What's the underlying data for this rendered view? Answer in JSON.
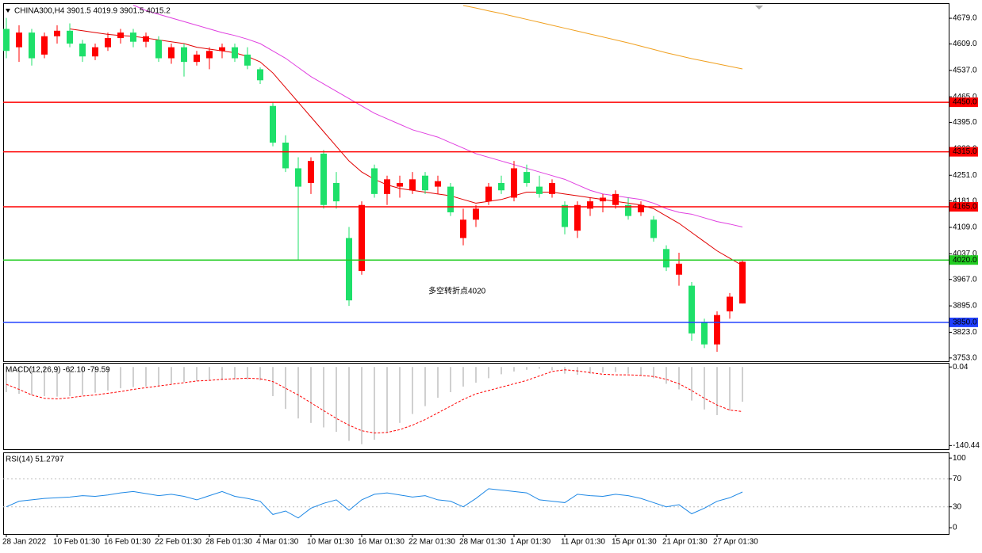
{
  "chart_data": [
    {
      "type": "candlestick",
      "title": "CHINA300,H4  3901.5 4019.9 3901.5 4015.2",
      "categories": [
        "28 Jan 2022",
        null,
        null,
        null,
        "10 Feb 01:30",
        null,
        null,
        null,
        "16 Feb 01:30",
        null,
        null,
        null,
        "22 Feb 01:30",
        null,
        null,
        null,
        "28 Feb 01:30",
        null,
        null,
        null,
        "4 Mar 01:30",
        null,
        null,
        null,
        "10 Mar 01:30",
        null,
        null,
        null,
        "16 Mar 01:30",
        null,
        null,
        null,
        "22 Mar 01:30",
        null,
        null,
        null,
        "28 Mar 01:30",
        null,
        null,
        null,
        "1 Apr 01:30",
        null,
        null,
        null,
        "11 Apr 01:30",
        null,
        null,
        null,
        "15 Apr 01:30",
        null,
        null,
        null,
        "21 Apr 01:30",
        null,
        null,
        null,
        "27 Apr 01:30",
        null,
        null
      ],
      "open": [
        4650,
        4600,
        4640,
        4580,
        4630,
        4645,
        4610,
        4575,
        4600,
        4625,
        4640,
        4615,
        4620,
        4570,
        4600,
        4560,
        4570,
        4590,
        4600,
        4580,
        4540,
        4440,
        4340,
        4270,
        4230,
        4310,
        4230,
        4080,
        3990,
        4270,
        4200,
        4220,
        4210,
        4250,
        4220,
        4220,
        4080,
        4130,
        4180,
        4230,
        4190,
        4260,
        4220,
        4200,
        4170,
        4100,
        4160,
        4180,
        4170,
        4170,
        4150,
        4130,
        4050,
        3980,
        3950,
        3850,
        3790,
        3880,
        3901.5
      ],
      "high": [
        4680,
        4660,
        4650,
        4640,
        4660,
        4665,
        4620,
        4610,
        4640,
        4650,
        4650,
        4640,
        4630,
        4610,
        4610,
        4590,
        4600,
        4610,
        4610,
        4600,
        4545,
        4450,
        4360,
        4300,
        4300,
        4320,
        4260,
        4110,
        4180,
        4280,
        4250,
        4250,
        4260,
        4260,
        4250,
        4230,
        4160,
        4170,
        4230,
        4250,
        4290,
        4280,
        4250,
        4240,
        4180,
        4180,
        4190,
        4200,
        4210,
        4190,
        4180,
        4140,
        4060,
        4040,
        3960,
        3860,
        3880,
        3930,
        4019.9
      ],
      "low": [
        4570,
        4560,
        4550,
        4570,
        4610,
        4600,
        4560,
        4565,
        4590,
        4610,
        4600,
        4600,
        4560,
        4555,
        4520,
        4550,
        4540,
        4570,
        4560,
        4540,
        4500,
        4330,
        4260,
        4020,
        4200,
        4160,
        4160,
        3895,
        3980,
        4190,
        4170,
        4190,
        4200,
        4200,
        4200,
        4140,
        4060,
        4110,
        4170,
        4200,
        4180,
        4220,
        4190,
        4190,
        4090,
        4080,
        4140,
        4150,
        4160,
        4130,
        4140,
        4070,
        3990,
        3950,
        3800,
        3780,
        3770,
        3860,
        3901.5
      ],
      "close": [
        4590,
        4640,
        4570,
        4630,
        4645,
        4610,
        4575,
        4600,
        4625,
        4640,
        4615,
        4630,
        4570,
        4600,
        4560,
        4580,
        4590,
        4600,
        4570,
        4550,
        4510,
        4340,
        4270,
        4220,
        4290,
        4170,
        4180,
        3910,
        4170,
        4200,
        4240,
        4230,
        4240,
        4210,
        4235,
        4150,
        4130,
        4160,
        4220,
        4210,
        4270,
        4230,
        4200,
        4230,
        4110,
        4170,
        4180,
        4190,
        4200,
        4140,
        4170,
        4080,
        4000,
        4010,
        3820,
        3790,
        3870,
        3920,
        4015.2
      ],
      "up_color": "#ff0000",
      "down_color": "#1ee06a",
      "lines": [
        {
          "color": "#e00000",
          "values": [
            null,
            null,
            null,
            null,
            null,
            4650,
            4645,
            4640,
            4635,
            4632,
            4630,
            4625,
            4620,
            4615,
            4610,
            4600,
            4595,
            4590,
            4585,
            4575,
            4560,
            4530,
            4490,
            4450,
            4410,
            4370,
            4330,
            4290,
            4260,
            4240,
            4225,
            4215,
            4210,
            4205,
            4200,
            4195,
            4185,
            4175,
            4180,
            4185,
            4195,
            4205,
            4205,
            4205,
            4200,
            4195,
            4190,
            4185,
            4180,
            4175,
            4170,
            4160,
            4140,
            4120,
            4095,
            4070,
            4045,
            4025,
            4005
          ]
        },
        {
          "color": "#e040e0",
          "values": [
            null,
            null,
            null,
            null,
            null,
            null,
            null,
            null,
            null,
            null,
            4715,
            4700,
            4690,
            4680,
            4670,
            4660,
            4650,
            4640,
            4632,
            4622,
            4610,
            4590,
            4570,
            4545,
            4520,
            4500,
            4480,
            4460,
            4440,
            4420,
            4405,
            4390,
            4375,
            4365,
            4355,
            4340,
            4325,
            4310,
            4300,
            4290,
            4280,
            4270,
            4260,
            4250,
            4240,
            4225,
            4210,
            4200,
            4195,
            4190,
            4185,
            4175,
            4160,
            4150,
            4145,
            4135,
            4125,
            4118,
            4110
          ]
        },
        {
          "color": "#f0a020",
          "values": [
            null,
            null,
            null,
            null,
            null,
            null,
            null,
            null,
            null,
            null,
            null,
            null,
            null,
            null,
            null,
            null,
            null,
            null,
            null,
            null,
            null,
            null,
            null,
            null,
            null,
            null,
            null,
            null,
            null,
            null,
            null,
            null,
            null,
            null,
            null,
            null,
            4714,
            4707,
            4699,
            4692,
            4684,
            4676,
            4668,
            4660,
            4652,
            4644,
            4636,
            4628,
            4620,
            4612,
            4603,
            4594,
            4585,
            4577,
            4569,
            4562,
            4555,
            4548,
            4541
          ]
        }
      ],
      "levels": [
        {
          "value": 4450,
          "label": "4450.0",
          "color": "#ff0000"
        },
        {
          "value": 4315,
          "label": "4315.0",
          "color": "#ff0000"
        },
        {
          "value": 4165,
          "label": "4165.0",
          "color": "#ff0000"
        },
        {
          "value": 4020,
          "label": "4020.0",
          "color": "#22cc22"
        },
        {
          "value": 3850,
          "label": "3850.0",
          "color": "#2040ff"
        }
      ],
      "annotation": "多空转折点4020",
      "ylim": [
        3744,
        4718
      ],
      "yticks": [
        {
          "value": 4679,
          "label": "4679.0"
        },
        {
          "value": 4609,
          "label": "4609.0"
        },
        {
          "value": 4537,
          "label": "4537.0"
        },
        {
          "value": 4465,
          "label": "4465.0"
        },
        {
          "value": 4395,
          "label": "4395.0"
        },
        {
          "value": 4323,
          "label": "4323.0"
        },
        {
          "value": 4251,
          "label": "4251.0"
        },
        {
          "value": 4181,
          "label": "4181.0"
        },
        {
          "value": 4109,
          "label": "4109.0"
        },
        {
          "value": 4037,
          "label": "4037.0"
        },
        {
          "value": 3967,
          "label": "3967.0"
        },
        {
          "value": 3895,
          "label": "3895.0"
        },
        {
          "value": 3823,
          "label": "3823.0"
        },
        {
          "value": 3753,
          "label": "3753.0"
        }
      ]
    },
    {
      "type": "macd",
      "title": "MACD(12,26,9) -62.10 -79.59",
      "histogram": [
        -45,
        -48,
        -50,
        -52,
        -53,
        -52,
        -50,
        -46,
        -42,
        -38,
        -36,
        -35,
        -34,
        -30,
        -27,
        -25,
        -24,
        -23,
        -22,
        -22,
        -24,
        -52,
        -75,
        -92,
        -100,
        -108,
        -116,
        -132,
        -138,
        -130,
        -118,
        -100,
        -84,
        -70,
        -55,
        -45,
        -35,
        -28,
        -20,
        -13,
        -8,
        -5,
        -3,
        -6,
        -12,
        -14,
        -12,
        -10,
        -9,
        -12,
        -15,
        -20,
        -30,
        -40,
        -60,
        -76,
        -86,
        -78,
        -62.1
      ],
      "signal": [
        -31,
        -40,
        -50,
        -56,
        -57,
        -55,
        -52,
        -50,
        -47,
        -44,
        -40,
        -37,
        -34,
        -31,
        -28,
        -25,
        -24,
        -22,
        -21,
        -20,
        -21,
        -26,
        -38,
        -50,
        -64,
        -78,
        -92,
        -104,
        -114,
        -118,
        -117,
        -112,
        -104,
        -94,
        -82,
        -70,
        -58,
        -48,
        -42,
        -36,
        -30,
        -24,
        -16,
        -8,
        -5,
        -7,
        -10,
        -13,
        -14,
        -14,
        -15,
        -17,
        -22,
        -30,
        -42,
        -56,
        -68,
        -77,
        -79.59
      ],
      "hist_color": "#c0c0c0",
      "signal_color": "#ff0000",
      "ylim": [
        -147,
        6
      ],
      "yticks": [
        0.04,
        -140.44
      ]
    },
    {
      "type": "line",
      "title": "RSI(14) 51.2797",
      "values": [
        30,
        38,
        40,
        42,
        43,
        44,
        46,
        45,
        47,
        50,
        52,
        49,
        46,
        48,
        45,
        40,
        46,
        52,
        45,
        42,
        38,
        19,
        24,
        14,
        28,
        35,
        40,
        25,
        40,
        48,
        50,
        47,
        44,
        46,
        40,
        38,
        30,
        42,
        56,
        54,
        52,
        50,
        40,
        38,
        36,
        48,
        46,
        45,
        48,
        46,
        42,
        36,
        30,
        33,
        20,
        28,
        38,
        43,
        51.2797
      ],
      "color": "#1e88e5",
      "ylim": [
        -9,
        107
      ],
      "yticks": [
        100,
        70,
        30,
        0
      ],
      "levels": [
        70,
        30
      ]
    }
  ]
}
